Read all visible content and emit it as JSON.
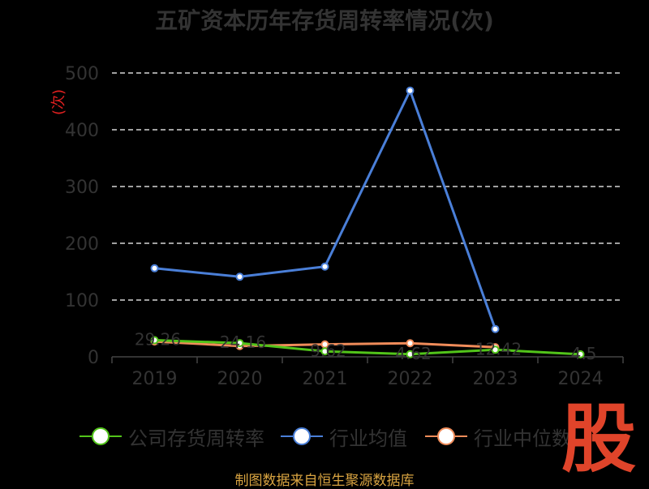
{
  "chart_data": {
    "type": "line",
    "title": "五矿资本历年存货周转率情况(次)",
    "ylabel": "(次)",
    "categories": [
      "2019",
      "2020",
      "2021",
      "2022",
      "2023",
      "2024"
    ],
    "ylim": [
      0,
      500
    ],
    "yticks": [
      "0",
      "100",
      "200",
      "300",
      "400",
      "500"
    ],
    "grid": true,
    "legend_position": "bottom",
    "series": [
      {
        "name": "公司存货周转率",
        "color": "#52c41a",
        "values": [
          29.26,
          24.16,
          9.62,
          4.62,
          12.42,
          4.5
        ],
        "labels": [
          "29.26",
          "24.16",
          "9.62",
          "4.62",
          "12.42",
          "4.5"
        ]
      },
      {
        "name": "行业均值",
        "color": "#4a7fd8",
        "values": [
          156,
          141,
          159,
          469,
          49,
          null
        ]
      },
      {
        "name": "行业中位数",
        "color": "#f08c5a",
        "values": [
          27,
          19,
          22,
          24,
          17,
          null
        ]
      }
    ]
  },
  "legend": {
    "item0": "公司存货周转率",
    "item1": "行业均值",
    "item2": "行业中位数"
  },
  "source": "制图数据来自恒生聚源数据库",
  "logo_text": "股"
}
